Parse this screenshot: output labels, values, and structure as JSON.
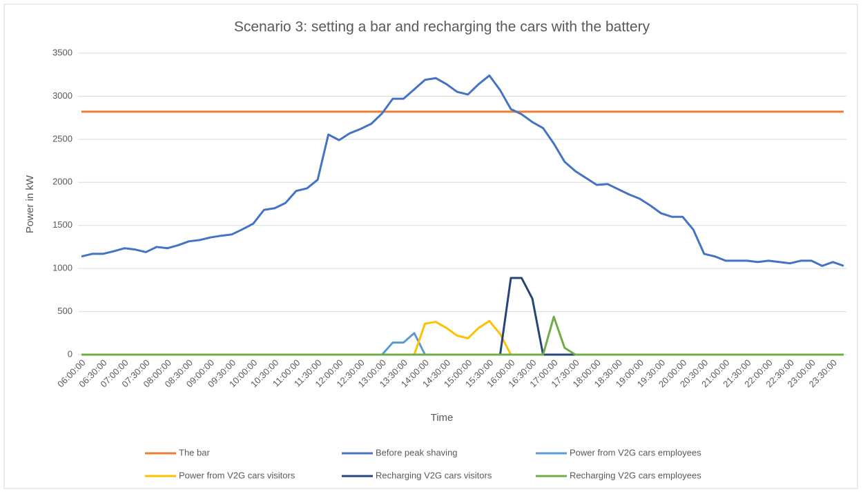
{
  "chart_data": {
    "type": "line",
    "title": "Scenario 3: setting a bar and recharging the cars with the battery",
    "x_label": "Time",
    "y_label": "Power in kW",
    "categories": [
      "06:00:00",
      null,
      "06:30:00",
      null,
      "07:00:00",
      null,
      "07:30:00",
      null,
      "08:00:00",
      null,
      "08:30:00",
      null,
      "09:00:00",
      null,
      "09:30:00",
      null,
      "10:00:00",
      null,
      "10:30:00",
      null,
      "11:00:00",
      null,
      "11:30:00",
      null,
      "12:00:00",
      null,
      "12:30:00",
      null,
      "13:00:00",
      null,
      "13:30:00",
      null,
      "14:00:00",
      null,
      "14:30:00",
      null,
      "15:00:00",
      null,
      "15:30:00",
      null,
      "16:00:00",
      null,
      "16:30:00",
      null,
      "17:00:00",
      null,
      "17:30:00",
      null,
      "18:00:00",
      null,
      "18:30:00",
      null,
      "19:00:00",
      null,
      "19:30:00",
      null,
      "20:00:00",
      null,
      "20:30:00",
      null,
      "21:00:00",
      null,
      "21:30:00",
      null,
      "22:00:00",
      null,
      "22:30:00",
      null,
      "23:00:00",
      null,
      "23:30:00",
      null
    ],
    "series": [
      {
        "name": "The bar",
        "color": "#ed7d31",
        "values": [
          2820,
          2820,
          2820,
          2820,
          2820,
          2820,
          2820,
          2820,
          2820,
          2820,
          2820,
          2820,
          2820,
          2820,
          2820,
          2820,
          2820,
          2820,
          2820,
          2820,
          2820,
          2820,
          2820,
          2820,
          2820,
          2820,
          2820,
          2820,
          2820,
          2820,
          2820,
          2820,
          2820,
          2820,
          2820,
          2820,
          2820,
          2820,
          2820,
          2820,
          2820,
          2820,
          2820,
          2820,
          2820,
          2820,
          2820,
          2820,
          2820,
          2820,
          2820,
          2820,
          2820,
          2820,
          2820,
          2820,
          2820,
          2820,
          2820,
          2820,
          2820,
          2820,
          2820,
          2820,
          2820,
          2820,
          2820,
          2820,
          2820,
          2820,
          2820,
          2820
        ]
      },
      {
        "name": "Before peak shaving",
        "color": "#4472c4",
        "values": [
          1140,
          1170,
          1170,
          1200,
          1235,
          1220,
          1190,
          1250,
          1235,
          1270,
          1315,
          1330,
          1360,
          1380,
          1395,
          1455,
          1520,
          1680,
          1700,
          1760,
          1900,
          1930,
          2030,
          2555,
          2490,
          2570,
          2620,
          2680,
          2800,
          2970,
          2970,
          3080,
          3190,
          3210,
          3140,
          3050,
          3020,
          3140,
          3240,
          3070,
          2850,
          2790,
          2700,
          2630,
          2450,
          2240,
          2130,
          2050,
          1970,
          1980,
          1920,
          1860,
          1810,
          1730,
          1640,
          1600,
          1600,
          1450,
          1170,
          1140,
          1090,
          1090,
          1090,
          1075,
          1090,
          1075,
          1060,
          1090,
          1090,
          1030,
          1075,
          1030
        ]
      },
      {
        "name": "Power from V2G cars employees",
        "color": "#5b9bd5",
        "values": [
          0,
          0,
          0,
          0,
          0,
          0,
          0,
          0,
          0,
          0,
          0,
          0,
          0,
          0,
          0,
          0,
          0,
          0,
          0,
          0,
          0,
          0,
          0,
          0,
          0,
          0,
          0,
          0,
          0,
          140,
          140,
          250,
          0,
          0,
          0,
          0,
          0,
          0,
          0,
          0,
          0,
          0,
          0,
          0,
          0,
          0,
          0,
          0,
          0,
          0,
          0,
          0,
          0,
          0,
          0,
          0,
          0,
          0,
          0,
          0,
          0,
          0,
          0,
          0,
          0,
          0,
          0,
          0,
          0,
          0,
          0,
          0
        ]
      },
      {
        "name": "Power from V2G cars visitors",
        "color": "#ffc000",
        "values": [
          0,
          0,
          0,
          0,
          0,
          0,
          0,
          0,
          0,
          0,
          0,
          0,
          0,
          0,
          0,
          0,
          0,
          0,
          0,
          0,
          0,
          0,
          0,
          0,
          0,
          0,
          0,
          0,
          0,
          0,
          0,
          0,
          360,
          380,
          310,
          220,
          190,
          310,
          390,
          240,
          0,
          0,
          0,
          0,
          0,
          0,
          0,
          0,
          0,
          0,
          0,
          0,
          0,
          0,
          0,
          0,
          0,
          0,
          0,
          0,
          0,
          0,
          0,
          0,
          0,
          0,
          0,
          0,
          0,
          0,
          0,
          0
        ]
      },
      {
        "name": "Recharging V2G cars visitors",
        "color": "#264478",
        "values": [
          0,
          0,
          0,
          0,
          0,
          0,
          0,
          0,
          0,
          0,
          0,
          0,
          0,
          0,
          0,
          0,
          0,
          0,
          0,
          0,
          0,
          0,
          0,
          0,
          0,
          0,
          0,
          0,
          0,
          0,
          0,
          0,
          0,
          0,
          0,
          0,
          0,
          0,
          0,
          0,
          890,
          890,
          650,
          0,
          0,
          0,
          0,
          0,
          0,
          0,
          0,
          0,
          0,
          0,
          0,
          0,
          0,
          0,
          0,
          0,
          0,
          0,
          0,
          0,
          0,
          0,
          0,
          0,
          0,
          0,
          0,
          0
        ]
      },
      {
        "name": "Recharging V2G cars employees",
        "color": "#70ad47",
        "values": [
          0,
          0,
          0,
          0,
          0,
          0,
          0,
          0,
          0,
          0,
          0,
          0,
          0,
          0,
          0,
          0,
          0,
          0,
          0,
          0,
          0,
          0,
          0,
          0,
          0,
          0,
          0,
          0,
          0,
          0,
          0,
          0,
          0,
          0,
          0,
          0,
          0,
          0,
          0,
          0,
          0,
          0,
          0,
          0,
          440,
          80,
          0,
          0,
          0,
          0,
          0,
          0,
          0,
          0,
          0,
          0,
          0,
          0,
          0,
          0,
          0,
          0,
          0,
          0,
          0,
          0,
          0,
          0,
          0,
          0,
          0,
          0
        ]
      }
    ],
    "ylim": [
      0,
      3500
    ],
    "yticks": [
      0,
      500,
      1000,
      1500,
      2000,
      2500,
      3000,
      3500
    ],
    "grid": true,
    "legend": "bottom"
  }
}
